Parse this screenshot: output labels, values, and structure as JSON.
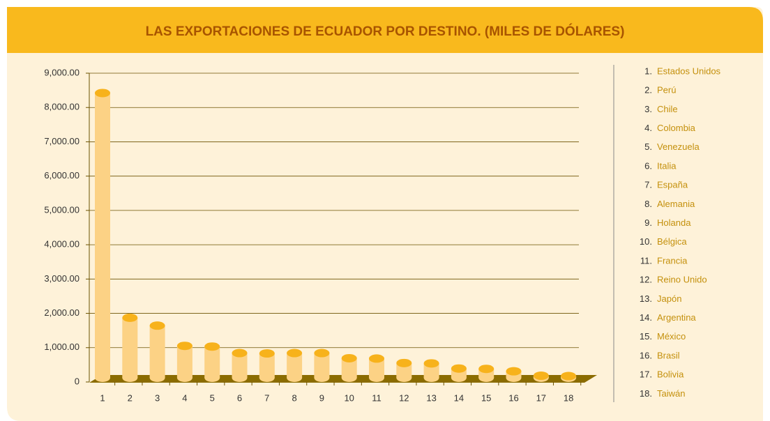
{
  "chart_data": {
    "type": "bar3d",
    "title": "LAS EXPORTACIONES DE ECUADOR POR DESTINO. (MILES DE DÓLARES)",
    "categories": [
      "1",
      "2",
      "3",
      "4",
      "5",
      "6",
      "7",
      "8",
      "9",
      "10",
      "11",
      "12",
      "13",
      "14",
      "15",
      "16",
      "17",
      "18"
    ],
    "values": [
      8300,
      1750,
      1520,
      930,
      910,
      720,
      710,
      720,
      720,
      570,
      560,
      430,
      420,
      270,
      260,
      190,
      60,
      50
    ],
    "color": "#fcd285",
    "top_color": "#f7b21b",
    "ylim": [
      0,
      9000
    ],
    "yticks": [
      0,
      {
        "value": 1000,
        "label": "1,000.00"
      },
      {
        "value": 2000,
        "label": "2,000.00"
      },
      {
        "value": 3000,
        "label": "3,000.00"
      },
      {
        "value": 4000,
        "label": "4,000.00"
      },
      {
        "value": 5000,
        "label": "5,000.00"
      },
      {
        "value": 6000,
        "label": "6,000.00"
      },
      {
        "value": 7000,
        "label": "7,000.00"
      },
      {
        "value": 8000,
        "label": "8,000.00"
      },
      {
        "value": 9000,
        "label": "9,000.00"
      }
    ],
    "grid": true,
    "legend": [
      {
        "label": "1.",
        "name": "Estados Unidos"
      },
      {
        "label": "2.",
        "name": "Perú"
      },
      {
        "label": "3.",
        "name": "Chile"
      },
      {
        "label": "4.",
        "name": "Colombia"
      },
      {
        "label": "5.",
        "name": "Venezuela"
      },
      {
        "label": "6.",
        "name": "Italia"
      },
      {
        "label": "7.",
        "name": "España"
      },
      {
        "label": "8.",
        "name": "Alemania"
      },
      {
        "label": "9.",
        "name": "Holanda"
      },
      {
        "label": "10.",
        "name": "Bélgica"
      },
      {
        "label": "11.",
        "name": "Francia"
      },
      {
        "label": "12.",
        "name": "Reino Unido"
      },
      {
        "label": "13.",
        "name": "Japón"
      },
      {
        "label": "14.",
        "name": "Argentina"
      },
      {
        "label": "15.",
        "name": "México"
      },
      {
        "label": "16.",
        "name": "Brasil"
      },
      {
        "label": "17.",
        "name": "Bolivia"
      },
      {
        "label": "18.",
        "name": "Taiwán"
      }
    ]
  }
}
